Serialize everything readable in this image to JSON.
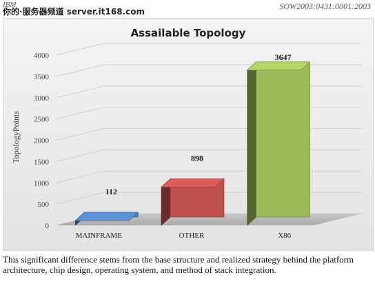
{
  "header": {
    "company": "IBM",
    "watermark": "你的·服务器频道 server.it168.com",
    "doc_id": "SOW2003:0431:0001:2003"
  },
  "chart_data": {
    "type": "bar",
    "title": "Assailable Topology",
    "ylabel": "TopologyPoints",
    "xlabel": "",
    "categories": [
      "MAINFRAME",
      "OTHER",
      "X86"
    ],
    "values": [
      112,
      898,
      3647
    ],
    "ylim": [
      0,
      4000
    ],
    "yticks": [
      0,
      500,
      1000,
      1500,
      2000,
      2500,
      3000,
      3500,
      4000
    ],
    "grid": true,
    "colors": [
      "#4f81bd",
      "#c0504d",
      "#9bbb59"
    ]
  },
  "caption": "This significant difference stems from the base structure and realized strategy behind the platform architecture, chip design, operating system, and method of stack integration."
}
